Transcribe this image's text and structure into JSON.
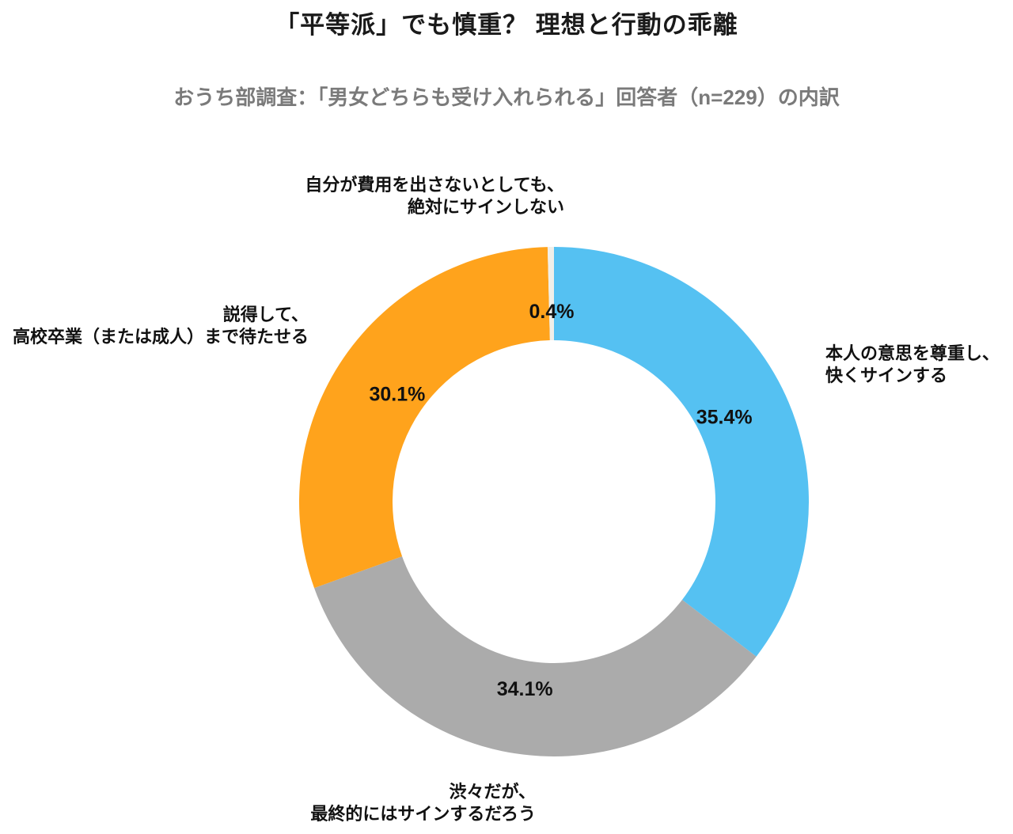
{
  "chart_data": {
    "type": "pie",
    "donut": true,
    "title": "「平等派」でも慎重？ 理想と行動の乖離",
    "subtitle": "おうち部調査：「男女どちらも受け入れられる」回答者（n=229）の内訳",
    "n": 229,
    "start_angle_deg": 0,
    "direction": "clockwise",
    "legend_position": "outside-labels",
    "slices": [
      {
        "id": "willing-sign",
        "label": "本人の意思を尊重し、快くサインする",
        "display_label": "本人の意思を尊重し、\n快くサインする",
        "value": 35.4,
        "pct_label": "35.4%",
        "color": "#55C1F2"
      },
      {
        "id": "reluctant-sign",
        "label": "渋々だが、最終的にはサインするだろう",
        "display_label": "渋々だが、\n最終的にはサインするだろう",
        "value": 34.1,
        "pct_label": "34.1%",
        "color": "#ABABAB"
      },
      {
        "id": "persuade-wait",
        "label": "説得して、高校卒業（または成人）まで待たせる",
        "display_label": "説得して、\n高校卒業（または成人）まで待たせる",
        "value": 30.1,
        "pct_label": "30.1%",
        "color": "#FFA31C"
      },
      {
        "id": "never-sign",
        "label": "自分が費用を出さないとしても、絶対にサインしない",
        "display_label": "自分が費用を出さないとしても、\n絶対にサインしない",
        "value": 0.4,
        "pct_label": "0.4%",
        "color": "#F0EFE9"
      }
    ]
  }
}
